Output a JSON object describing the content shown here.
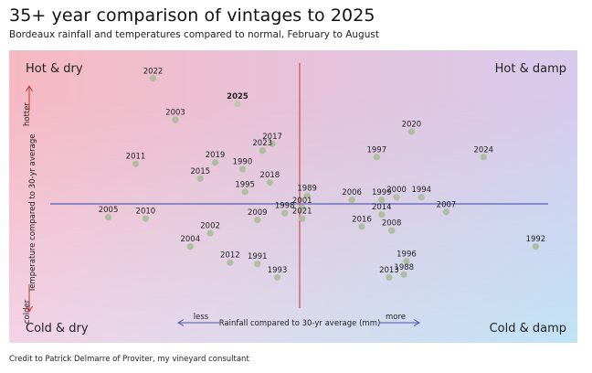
{
  "header": {
    "title": "35+ year comparison of vintages to 2025",
    "subtitle": "Bordeaux rainfall and temperatures compared to normal, February to August"
  },
  "footer": {
    "credit": "Credit to Patrick Delmarre of Proviter, my vineyard consultant"
  },
  "chart_data": {
    "type": "scatter",
    "title": "35+ year comparison of vintages to 2025",
    "xlabel": "Rainfall compared to 30-yr average (mm)",
    "ylabel": "Temperature compared to 30-yr average",
    "x_axis_low": "less",
    "x_axis_high": "more",
    "y_axis_high": "hotter",
    "y_axis_low": "colder",
    "xlim": [
      -100,
      100
    ],
    "ylim": [
      -100,
      100
    ],
    "grid": false,
    "highlight": "2025",
    "quadrants": {
      "top_left": "Hot & dry",
      "top_right": "Hot & damp",
      "bottom_left": "Cold & dry",
      "bottom_right": "Cold & damp"
    },
    "colors": {
      "point": "#a9bf9a",
      "point_2025": "#b5c9a6",
      "x_axis_line": "#5561b5",
      "y_axis_line": "#d24b4b",
      "arrow": "#4a58b0",
      "arrow_red": "#c0392b",
      "bg_top_left": "#f7b9c3",
      "bg_top_right": "#d8cbee",
      "bg_bottom_left": "#f2d3e6",
      "bg_bottom_right": "#bfe3f6"
    },
    "points": [
      {
        "label": "2022",
        "x": -59,
        "y": 94
      },
      {
        "label": "2025",
        "x": -25,
        "y": 75
      },
      {
        "label": "2003",
        "x": -50,
        "y": 63
      },
      {
        "label": "2020",
        "x": 45,
        "y": 54
      },
      {
        "label": "2017",
        "x": -11,
        "y": 45
      },
      {
        "label": "2023",
        "x": -15,
        "y": 40
      },
      {
        "label": "1997",
        "x": 31,
        "y": 35
      },
      {
        "label": "2024",
        "x": 74,
        "y": 35
      },
      {
        "label": "2011",
        "x": -66,
        "y": 30
      },
      {
        "label": "2019",
        "x": -34,
        "y": 31
      },
      {
        "label": "1990",
        "x": -23,
        "y": 26
      },
      {
        "label": "2015",
        "x": -40,
        "y": 19
      },
      {
        "label": "2018",
        "x": -12,
        "y": 16
      },
      {
        "label": "1995",
        "x": -22,
        "y": 9
      },
      {
        "label": "1989",
        "x": 3,
        "y": 6
      },
      {
        "label": "2006",
        "x": 21,
        "y": 3
      },
      {
        "label": "1999",
        "x": 33,
        "y": 3
      },
      {
        "label": "2000",
        "x": 39,
        "y": 5
      },
      {
        "label": "1994",
        "x": 49,
        "y": 5
      },
      {
        "label": "2001",
        "x": 1,
        "y": -3
      },
      {
        "label": "1998",
        "x": -6,
        "y": -7
      },
      {
        "label": "2007",
        "x": 59,
        "y": -6
      },
      {
        "label": "2014",
        "x": 33,
        "y": -8
      },
      {
        "label": "2005",
        "x": -77,
        "y": -10
      },
      {
        "label": "2010",
        "x": -62,
        "y": -11
      },
      {
        "label": "2009",
        "x": -17,
        "y": -12
      },
      {
        "label": "2021",
        "x": 1,
        "y": -11
      },
      {
        "label": "2016",
        "x": 25,
        "y": -17
      },
      {
        "label": "2002",
        "x": -36,
        "y": -22
      },
      {
        "label": "2008",
        "x": 37,
        "y": -20
      },
      {
        "label": "2004",
        "x": -44,
        "y": -32
      },
      {
        "label": "1992",
        "x": 95,
        "y": -32
      },
      {
        "label": "2012",
        "x": -28,
        "y": -44
      },
      {
        "label": "1996",
        "x": 43,
        "y": -43
      },
      {
        "label": "1991",
        "x": -17,
        "y": -45
      },
      {
        "label": "1988",
        "x": 42,
        "y": -53
      },
      {
        "label": "1993",
        "x": -9,
        "y": -55
      },
      {
        "label": "2013",
        "x": 36,
        "y": -55
      }
    ]
  }
}
